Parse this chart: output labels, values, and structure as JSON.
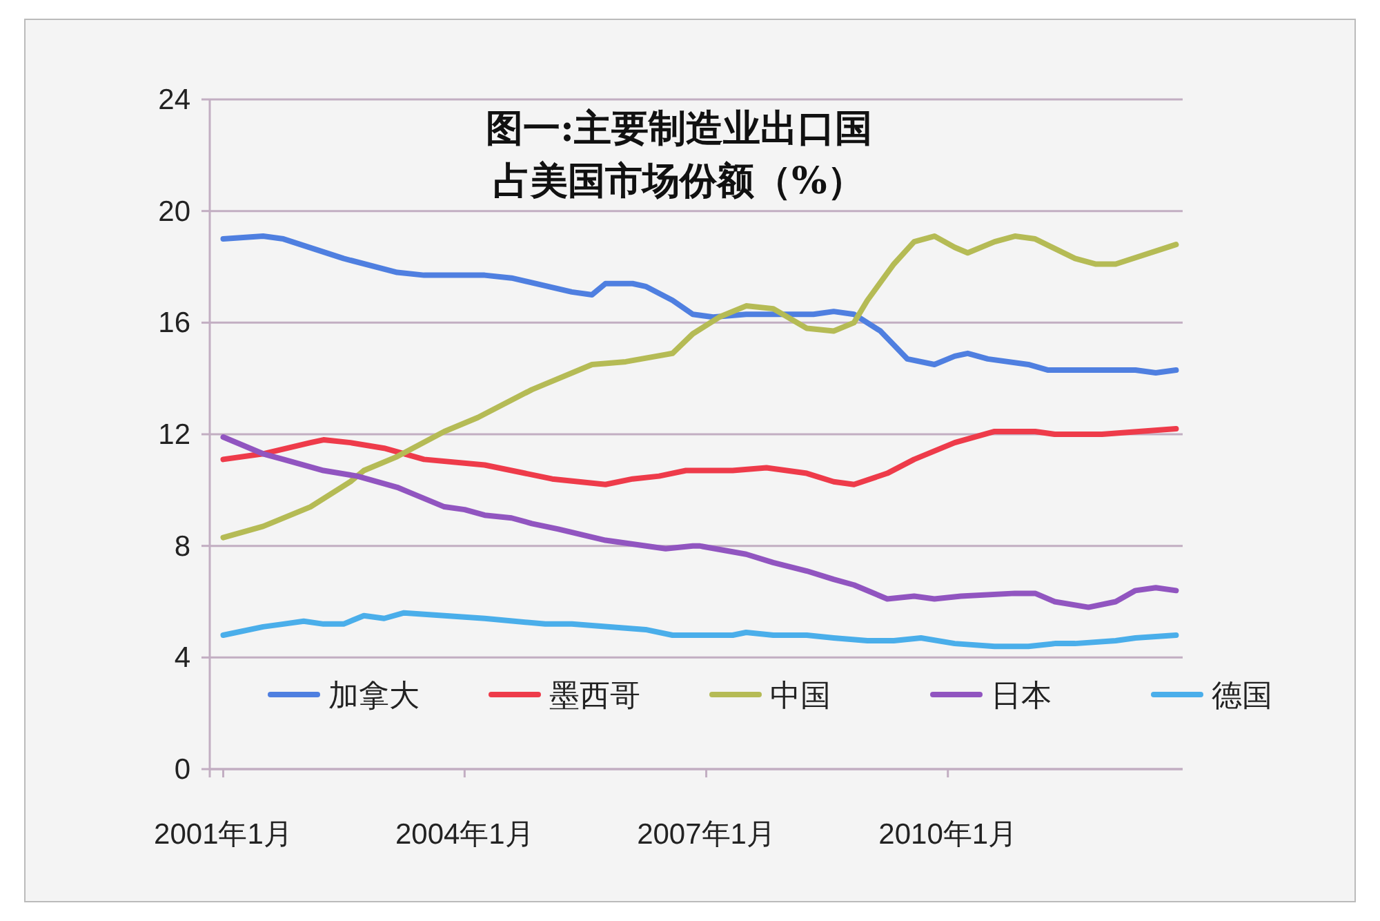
{
  "chart_data": {
    "type": "line",
    "title": "图一:主要制造业出口国占美国市场份额（%）",
    "xlim": [
      "2000-11",
      "2012-12"
    ],
    "ylim": [
      0,
      24
    ],
    "yticks": [
      0,
      4,
      8,
      12,
      16,
      20,
      24
    ],
    "xticks": [
      {
        "value": "2001-01",
        "label": "2001年1月"
      },
      {
        "value": "2004-01",
        "label": "2004年1月"
      },
      {
        "value": "2007-01",
        "label": "2007年1月"
      },
      {
        "value": "2010-01",
        "label": "2010年1月"
      }
    ],
    "grid": "y",
    "legend": "bottom",
    "marker": "none",
    "line_style": "solid",
    "series": [
      {
        "name": "加拿大",
        "color": "#4f7fe0",
        "x": [
          "2001-01",
          "2001-07",
          "2001-10",
          "2002-07",
          "2003-03",
          "2003-07",
          "2004-04",
          "2004-08",
          "2005-05",
          "2005-08",
          "2005-10",
          "2006-02",
          "2006-04",
          "2006-08",
          "2006-11",
          "2007-02",
          "2007-07",
          "2008-05",
          "2008-08",
          "2008-11",
          "2009-03",
          "2009-07",
          "2009-11",
          "2010-02",
          "2010-04",
          "2010-07",
          "2011-01",
          "2011-04",
          "2011-08",
          "2012-05",
          "2012-08",
          "2012-11"
        ],
        "values": [
          19.0,
          19.1,
          19.0,
          18.3,
          17.8,
          17.7,
          17.7,
          17.6,
          17.1,
          17.0,
          17.4,
          17.4,
          17.3,
          16.8,
          16.3,
          16.2,
          16.3,
          16.3,
          16.4,
          16.3,
          15.7,
          14.7,
          14.5,
          14.8,
          14.9,
          14.7,
          14.5,
          14.3,
          14.3,
          14.3,
          14.2,
          14.3
        ]
      },
      {
        "name": "墨西哥",
        "color": "#ee3b4a",
        "x": [
          "2001-01",
          "2001-07",
          "2002-02",
          "2002-04",
          "2002-08",
          "2003-01",
          "2003-07",
          "2004-04",
          "2005-02",
          "2005-10",
          "2006-02",
          "2006-06",
          "2006-10",
          "2007-05",
          "2007-10",
          "2008-04",
          "2008-08",
          "2008-11",
          "2009-04",
          "2009-08",
          "2010-02",
          "2010-08",
          "2011-02",
          "2011-05",
          "2011-12",
          "2012-11"
        ],
        "values": [
          11.1,
          11.3,
          11.7,
          11.8,
          11.7,
          11.5,
          11.1,
          10.9,
          10.4,
          10.2,
          10.4,
          10.5,
          10.7,
          10.7,
          10.8,
          10.6,
          10.3,
          10.2,
          10.6,
          11.1,
          11.7,
          12.1,
          12.1,
          12.0,
          12.0,
          12.2
        ]
      },
      {
        "name": "中国",
        "color": "#b5bb55",
        "x": [
          "2001-01",
          "2001-07",
          "2002-02",
          "2002-08",
          "2002-10",
          "2003-03",
          "2003-10",
          "2004-03",
          "2004-11",
          "2005-08",
          "2006-01",
          "2006-08",
          "2006-11",
          "2007-03",
          "2007-07",
          "2007-11",
          "2008-04",
          "2008-08",
          "2008-11",
          "2009-01",
          "2009-05",
          "2009-08",
          "2009-11",
          "2010-02",
          "2010-04",
          "2010-08",
          "2010-11",
          "2011-02",
          "2011-08",
          "2011-11",
          "2012-02",
          "2012-11"
        ],
        "values": [
          8.3,
          8.7,
          9.4,
          10.3,
          10.7,
          11.2,
          12.1,
          12.6,
          13.6,
          14.5,
          14.6,
          14.9,
          15.6,
          16.2,
          16.6,
          16.5,
          15.8,
          15.7,
          16.0,
          16.8,
          18.1,
          18.9,
          19.1,
          18.7,
          18.5,
          18.9,
          19.1,
          19.0,
          18.3,
          18.1,
          18.1,
          18.8
        ]
      },
      {
        "name": "日本",
        "color": "#9155c0",
        "x": [
          "2001-01",
          "2001-07",
          "2001-10",
          "2002-04",
          "2002-09",
          "2003-03",
          "2003-05",
          "2003-10",
          "2004-01",
          "2004-04",
          "2004-08",
          "2004-11",
          "2005-03",
          "2005-10",
          "2006-07",
          "2006-11",
          "2006-12",
          "2007-07",
          "2007-11",
          "2008-04",
          "2008-08",
          "2008-11",
          "2009-04",
          "2009-08",
          "2009-11",
          "2010-03",
          "2010-11",
          "2011-02",
          "2011-05",
          "2011-10",
          "2012-02",
          "2012-05",
          "2012-08",
          "2012-11"
        ],
        "values": [
          11.9,
          11.3,
          11.1,
          10.7,
          10.5,
          10.1,
          9.9,
          9.4,
          9.3,
          9.1,
          9.0,
          8.8,
          8.6,
          8.2,
          7.9,
          8.0,
          8.0,
          7.7,
          7.4,
          7.1,
          6.8,
          6.6,
          6.1,
          6.2,
          6.1,
          6.2,
          6.3,
          6.3,
          6.0,
          5.8,
          6.0,
          6.4,
          6.5,
          6.4
        ]
      },
      {
        "name": "德国",
        "color": "#4aaeea",
        "x": [
          "2001-01",
          "2001-07",
          "2001-10",
          "2002-01",
          "2002-04",
          "2002-07",
          "2002-10",
          "2003-01",
          "2003-04",
          "2003-10",
          "2004-04",
          "2005-01",
          "2005-05",
          "2006-04",
          "2006-08",
          "2006-11",
          "2007-05",
          "2007-07",
          "2007-11",
          "2008-04",
          "2008-08",
          "2009-01",
          "2009-05",
          "2009-09",
          "2010-02",
          "2010-08",
          "2011-01",
          "2011-05",
          "2011-08",
          "2012-02",
          "2012-05",
          "2012-11"
        ],
        "values": [
          4.8,
          5.1,
          5.2,
          5.3,
          5.2,
          5.2,
          5.5,
          5.4,
          5.6,
          5.5,
          5.4,
          5.2,
          5.2,
          5.0,
          4.8,
          4.8,
          4.8,
          4.9,
          4.8,
          4.8,
          4.7,
          4.6,
          4.6,
          4.7,
          4.5,
          4.4,
          4.4,
          4.5,
          4.5,
          4.6,
          4.7,
          4.8
        ]
      }
    ]
  }
}
